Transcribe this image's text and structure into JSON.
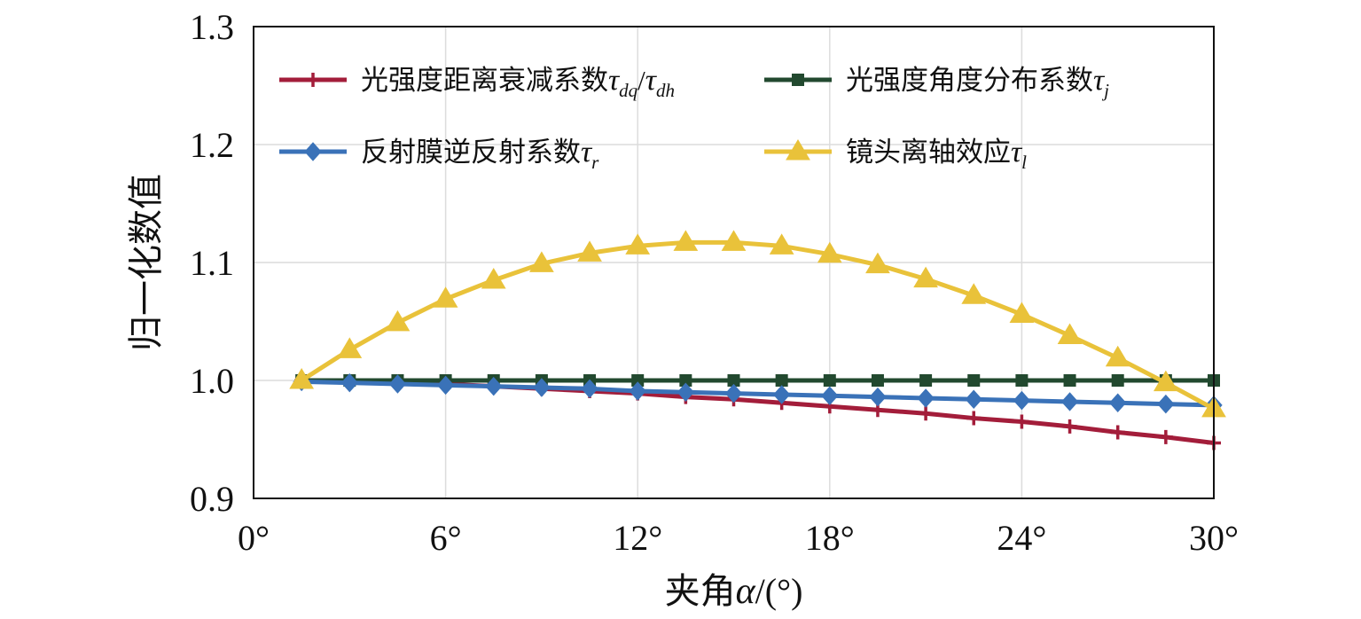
{
  "chart_data": {
    "type": "line",
    "title": "",
    "xlabel_prefix": "夹角",
    "xlabel_symbol": "α",
    "xlabel_suffix": "/(°)",
    "ylabel": "归一化数值",
    "xlim": [
      0,
      30
    ],
    "ylim": [
      0.9,
      1.3
    ],
    "xticks": [
      0,
      6,
      12,
      18,
      24,
      30
    ],
    "xtick_labels": [
      "0°",
      "6°",
      "12°",
      "18°",
      "24°",
      "30°"
    ],
    "yticks": [
      0.9,
      1.0,
      1.1,
      1.2,
      1.3
    ],
    "ytick_labels": [
      "0.9",
      "1.0",
      "1.1",
      "1.2",
      "1.3"
    ],
    "grid": true,
    "legend_position": "top",
    "x": [
      1.5,
      3,
      4.5,
      6,
      7.5,
      9,
      10.5,
      12,
      13.5,
      15,
      16.5,
      18,
      19.5,
      21,
      22.5,
      24,
      25.5,
      27,
      28.5,
      30
    ],
    "series": [
      {
        "name": "光强度距离衰减系数",
        "symbol": "τ",
        "subscript": "dq",
        "name_suffix": "/",
        "symbol2": "τ",
        "subscript2": "dh",
        "color": "#a31d3a",
        "marker": "plus",
        "values": [
          1.0,
          0.999,
          0.998,
          0.997,
          0.995,
          0.993,
          0.991,
          0.989,
          0.986,
          0.984,
          0.981,
          0.978,
          0.975,
          0.972,
          0.968,
          0.965,
          0.961,
          0.956,
          0.952,
          0.947
        ]
      },
      {
        "name": "光强度角度分布系数",
        "symbol": "τ",
        "subscript": "j",
        "color": "#22492f",
        "marker": "square",
        "values": [
          1.0,
          1.0,
          1.0,
          1.0,
          1.0,
          1.0,
          1.0,
          1.0,
          1.0,
          1.0,
          1.0,
          1.0,
          1.0,
          1.0,
          1.0,
          1.0,
          1.0,
          1.0,
          1.0,
          1.0
        ]
      },
      {
        "name": "反射膜逆反射系数",
        "symbol": "τ",
        "subscript": "r",
        "color": "#3a72b8",
        "marker": "diamond",
        "values": [
          0.999,
          0.998,
          0.997,
          0.996,
          0.995,
          0.994,
          0.993,
          0.991,
          0.99,
          0.989,
          0.988,
          0.987,
          0.986,
          0.985,
          0.984,
          0.983,
          0.982,
          0.981,
          0.98,
          0.979
        ]
      },
      {
        "name": "镜头离轴效应",
        "symbol": "τ",
        "subscript": "l",
        "color": "#e9c23a",
        "marker": "triangle",
        "values": [
          1.0,
          1.026,
          1.049,
          1.069,
          1.085,
          1.099,
          1.108,
          1.114,
          1.117,
          1.117,
          1.114,
          1.107,
          1.098,
          1.086,
          1.072,
          1.056,
          1.038,
          1.019,
          0.998,
          0.976
        ]
      }
    ]
  }
}
